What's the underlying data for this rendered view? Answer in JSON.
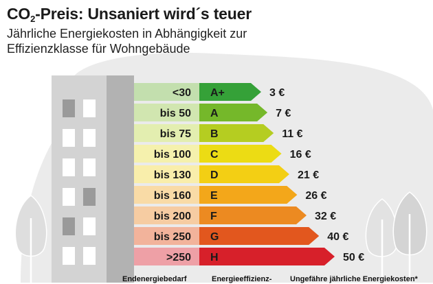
{
  "title": {
    "prefix": "CO",
    "subscript": "2",
    "suffix": "-Preis: Unsaniert wird´s teuer"
  },
  "subtitle": "Jährliche Energiekosten in Abhängigkeit zur Effizienzklasse für Wohngebäude",
  "footer": {
    "col1": "Endenergiebedarf",
    "col2": "Energieeffizienz-",
    "col3": "Ungefähre jährliche Energiekosten*"
  },
  "chart_data": {
    "type": "bar",
    "categories": [
      "A+",
      "A",
      "B",
      "C",
      "D",
      "E",
      "F",
      "G",
      "H"
    ],
    "demand_labels": [
      "<30",
      "bis 50",
      "bis 75",
      "bis 100",
      "bis 130",
      "bis 160",
      "bis 200",
      "bis 250",
      ">250"
    ],
    "values": [
      3,
      7,
      11,
      16,
      21,
      26,
      32,
      40,
      50
    ],
    "value_labels": [
      "3 €",
      "7 €",
      "11 €",
      "16 €",
      "21 €",
      "26 €",
      "32 €",
      "40 €",
      "50 €"
    ],
    "colors": [
      "#35a138",
      "#75b82a",
      "#b5cd21",
      "#ecdc14",
      "#f3cf14",
      "#f3a71a",
      "#ec8a21",
      "#e2571e",
      "#d7202a"
    ],
    "light_colors": [
      "#c3dfae",
      "#d1e6b0",
      "#e3eeb0",
      "#f5f1ad",
      "#f9eeab",
      "#f9dba6",
      "#f6cca2",
      "#f2b39b",
      "#eea0a6"
    ]
  }
}
